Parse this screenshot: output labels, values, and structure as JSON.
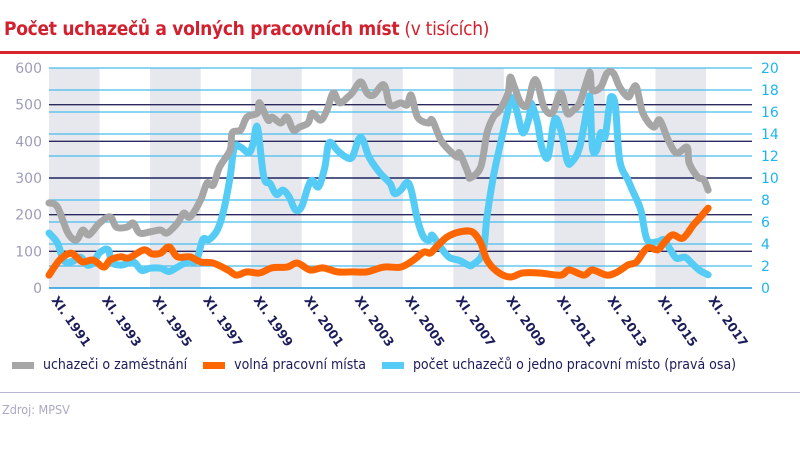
{
  "title": {
    "main": "Počet uchazečů a volných pracovních míst",
    "sub": "(v tisících)"
  },
  "source": "Zdroj: MPSV",
  "colors": {
    "title": "#d2202f",
    "unemployed": "#a6a6a6",
    "vacancies": "#ff6600",
    "ratio": "#55ccf5",
    "grid_major": "#2b2a5e",
    "grid_minor": "#45bdee",
    "band": "#e7e7ee",
    "left_axis": "#9d9db8",
    "right_axis": "#1eb4f0",
    "x_labels": "#1c1c5a"
  },
  "chart_data": {
    "type": "line",
    "title": "Počet uchazečů a volných pracovních míst (v tisících)",
    "x_ticks": [
      "XI. 1991",
      "XI. 1993",
      "XI. 1995",
      "XI. 1997",
      "XI. 1999",
      "XI. 2001",
      "XI. 2003",
      "XI. 2005",
      "XI. 2007",
      "XI. 2009",
      "XI. 2011",
      "XI. 2013",
      "XI. 2015",
      "XI. 2017"
    ],
    "y_left": {
      "range": [
        0,
        600
      ],
      "ticks": [
        "0",
        "100",
        "200",
        "300",
        "400",
        "500",
        "600"
      ]
    },
    "y_right": {
      "range": [
        0,
        20
      ],
      "ticks": [
        "0",
        "2",
        "4",
        "6",
        "8",
        "10",
        "12",
        "14",
        "16",
        "18",
        "20"
      ]
    },
    "grid": true,
    "shaded_bands": true,
    "legend_position": "bottom",
    "series": [
      {
        "name": "uchazeči o zaměstnání",
        "axis": "left",
        "color": "#a6a6a6",
        "points": [
          [
            "1991-11",
            232
          ],
          [
            "1992-03",
            221
          ],
          [
            "1992-08",
            150
          ],
          [
            "1992-12",
            131
          ],
          [
            "1993-03",
            158
          ],
          [
            "1993-06",
            145
          ],
          [
            "1993-11",
            177
          ],
          [
            "1994-04",
            194
          ],
          [
            "1994-07",
            166
          ],
          [
            "1994-12",
            166
          ],
          [
            "1995-03",
            177
          ],
          [
            "1995-06",
            150
          ],
          [
            "1995-11",
            153
          ],
          [
            "1996-04",
            158
          ],
          [
            "1996-07",
            150
          ],
          [
            "1996-12",
            177
          ],
          [
            "1997-03",
            204
          ],
          [
            "1997-06",
            194
          ],
          [
            "1997-11",
            240
          ],
          [
            "1998-02",
            286
          ],
          [
            "1998-05",
            281
          ],
          [
            "1998-08",
            330
          ],
          [
            "1999-01",
            376
          ],
          [
            "1999-02",
            423
          ],
          [
            "1999-06",
            431
          ],
          [
            "1999-09",
            466
          ],
          [
            "2000-02",
            477
          ],
          [
            "2000-03",
            505
          ],
          [
            "2000-07",
            458
          ],
          [
            "2000-09",
            466
          ],
          [
            "2001-01",
            450
          ],
          [
            "2001-04",
            466
          ],
          [
            "2001-07",
            431
          ],
          [
            "2001-10",
            439
          ],
          [
            "2002-02",
            450
          ],
          [
            "2002-04",
            477
          ],
          [
            "2002-08",
            458
          ],
          [
            "2002-11",
            485
          ],
          [
            "2003-02",
            532
          ],
          [
            "2003-05",
            505
          ],
          [
            "2003-09",
            521
          ],
          [
            "2003-11",
            532
          ],
          [
            "2004-03",
            562
          ],
          [
            "2004-06",
            532
          ],
          [
            "2004-09",
            526
          ],
          [
            "2005-02",
            554
          ],
          [
            "2005-05",
            499
          ],
          [
            "2005-10",
            505
          ],
          [
            "2006-01",
            499
          ],
          [
            "2006-03",
            526
          ],
          [
            "2006-06",
            466
          ],
          [
            "2006-11",
            450
          ],
          [
            "2007-01",
            458
          ],
          [
            "2007-05",
            404
          ],
          [
            "2007-09",
            376
          ],
          [
            "2008-01",
            357
          ],
          [
            "2008-02",
            368
          ],
          [
            "2008-06",
            314
          ],
          [
            "2008-07",
            300
          ],
          [
            "2008-12",
            330
          ],
          [
            "2009-03",
            423
          ],
          [
            "2009-06",
            466
          ],
          [
            "2009-09",
            485
          ],
          [
            "2010-01",
            532
          ],
          [
            "2010-02",
            575
          ],
          [
            "2010-04",
            548
          ],
          [
            "2010-07",
            505
          ],
          [
            "2010-10",
            499
          ],
          [
            "2011-01",
            562
          ],
          [
            "2011-03",
            559
          ],
          [
            "2011-06",
            494
          ],
          [
            "2011-10",
            477
          ],
          [
            "2012-02",
            532
          ],
          [
            "2012-05",
            477
          ],
          [
            "2012-08",
            485
          ],
          [
            "2012-11",
            505
          ],
          [
            "2013-03",
            575
          ],
          [
            "2013-04",
            586
          ],
          [
            "2013-05",
            540
          ],
          [
            "2013-09",
            548
          ],
          [
            "2013-12",
            586
          ],
          [
            "2014-03",
            586
          ],
          [
            "2014-06",
            548
          ],
          [
            "2014-10",
            521
          ],
          [
            "2014-12",
            540
          ],
          [
            "2015-02",
            548
          ],
          [
            "2015-05",
            477
          ],
          [
            "2015-10",
            439
          ],
          [
            "2016-01",
            458
          ],
          [
            "2016-05",
            404
          ],
          [
            "2016-09",
            368
          ],
          [
            "2017-02",
            384
          ],
          [
            "2017-03",
            341
          ],
          [
            "2017-07",
            303
          ],
          [
            "2017-10",
            295
          ],
          [
            "2017-12",
            267
          ]
        ]
      },
      {
        "name": "volná pracovní místa",
        "axis": "left",
        "color": "#ff6600",
        "points": [
          [
            "1991-11",
            35
          ],
          [
            "1992-04",
            76
          ],
          [
            "1992-09",
            95
          ],
          [
            "1992-12",
            85
          ],
          [
            "1993-03",
            71
          ],
          [
            "1993-08",
            76
          ],
          [
            "1994-01",
            57
          ],
          [
            "1994-04",
            76
          ],
          [
            "1994-09",
            85
          ],
          [
            "1995-01",
            82
          ],
          [
            "1995-08",
            104
          ],
          [
            "1995-12",
            93
          ],
          [
            "1996-04",
            95
          ],
          [
            "1996-08",
            112
          ],
          [
            "1996-12",
            85
          ],
          [
            "1997-06",
            85
          ],
          [
            "1997-11",
            71
          ],
          [
            "1998-05",
            68
          ],
          [
            "1998-12",
            49
          ],
          [
            "1999-04",
            35
          ],
          [
            "1999-09",
            44
          ],
          [
            "2000-03",
            41
          ],
          [
            "2000-09",
            55
          ],
          [
            "2001-04",
            57
          ],
          [
            "2001-09",
            68
          ],
          [
            "2002-03",
            49
          ],
          [
            "2002-09",
            55
          ],
          [
            "2003-04",
            44
          ],
          [
            "2003-11",
            44
          ],
          [
            "2004-06",
            44
          ],
          [
            "2005-02",
            57
          ],
          [
            "2005-10",
            57
          ],
          [
            "2006-04",
            76
          ],
          [
            "2006-09",
            98
          ],
          [
            "2006-12",
            95
          ],
          [
            "2007-03",
            112
          ],
          [
            "2007-08",
            139
          ],
          [
            "2008-02",
            153
          ],
          [
            "2008-08",
            153
          ],
          [
            "2008-12",
            123
          ],
          [
            "2009-03",
            76
          ],
          [
            "2009-08",
            44
          ],
          [
            "2010-02",
            30
          ],
          [
            "2010-08",
            41
          ],
          [
            "2011-04",
            41
          ],
          [
            "2012-02",
            35
          ],
          [
            "2012-06",
            49
          ],
          [
            "2013-01",
            35
          ],
          [
            "2013-05",
            49
          ],
          [
            "2013-12",
            35
          ],
          [
            "2014-05",
            44
          ],
          [
            "2014-10",
            63
          ],
          [
            "2015-02",
            71
          ],
          [
            "2015-07",
            109
          ],
          [
            "2015-12",
            104
          ],
          [
            "2016-03",
            123
          ],
          [
            "2016-07",
            145
          ],
          [
            "2016-12",
            136
          ],
          [
            "2017-05",
            172
          ],
          [
            "2017-08",
            191
          ],
          [
            "2017-12",
            218
          ]
        ]
      },
      {
        "name": "počet uchazečů o jedno pracovní místo (pravá osa)",
        "axis": "right",
        "color": "#55ccf5",
        "points": [
          [
            "1991-11",
            5.0
          ],
          [
            "1992-03",
            4.1
          ],
          [
            "1992-06",
            2.5
          ],
          [
            "1992-10",
            2.4
          ],
          [
            "1993-02",
            2.8
          ],
          [
            "1993-05",
            2.1
          ],
          [
            "1993-08",
            2.3
          ],
          [
            "1993-11",
            3.2
          ],
          [
            "1994-03",
            3.5
          ],
          [
            "1994-05",
            2.3
          ],
          [
            "1994-10",
            2.1
          ],
          [
            "1995-03",
            2.4
          ],
          [
            "1995-07",
            1.6
          ],
          [
            "1995-11",
            1.8
          ],
          [
            "1996-04",
            1.8
          ],
          [
            "1996-08",
            1.5
          ],
          [
            "1996-12",
            1.9
          ],
          [
            "1997-05",
            2.4
          ],
          [
            "1997-09",
            2.5
          ],
          [
            "1997-12",
            4.4
          ],
          [
            "1998-03",
            4.4
          ],
          [
            "1998-07",
            5.3
          ],
          [
            "1998-10",
            7.1
          ],
          [
            "1999-01",
            10.1
          ],
          [
            "1999-03",
            12.8
          ],
          [
            "1999-06",
            12.8
          ],
          [
            "1999-10",
            12.3
          ],
          [
            "1999-12",
            13.2
          ],
          [
            "2000-02",
            14.6
          ],
          [
            "2000-05",
            10.1
          ],
          [
            "2000-08",
            9.5
          ],
          [
            "2000-11",
            8.5
          ],
          [
            "2001-02",
            8.9
          ],
          [
            "2001-05",
            8.3
          ],
          [
            "2001-08",
            7.1
          ],
          [
            "2001-11",
            7.4
          ],
          [
            "2002-02",
            9.2
          ],
          [
            "2002-04",
            9.8
          ],
          [
            "2002-07",
            9.2
          ],
          [
            "2002-10",
            11.0
          ],
          [
            "2002-12",
            13.2
          ],
          [
            "2003-04",
            12.5
          ],
          [
            "2003-08",
            11.9
          ],
          [
            "2003-11",
            11.9
          ],
          [
            "2004-02",
            13.5
          ],
          [
            "2004-04",
            13.5
          ],
          [
            "2004-07",
            11.9
          ],
          [
            "2004-12",
            10.5
          ],
          [
            "2005-05",
            9.5
          ],
          [
            "2005-07",
            8.6
          ],
          [
            "2005-10",
            8.9
          ],
          [
            "2006-01",
            9.6
          ],
          [
            "2006-03",
            8.9
          ],
          [
            "2006-06",
            6.2
          ],
          [
            "2006-09",
            4.6
          ],
          [
            "2006-12",
            4.4
          ],
          [
            "2007-01",
            4.8
          ],
          [
            "2007-05",
            3.7
          ],
          [
            "2007-09",
            2.8
          ],
          [
            "2008-02",
            2.5
          ],
          [
            "2008-06",
            2.1
          ],
          [
            "2008-08",
            2.1
          ],
          [
            "2009-01",
            3.2
          ],
          [
            "2009-03",
            6.5
          ],
          [
            "2009-06",
            10.1
          ],
          [
            "2009-09",
            12.8
          ],
          [
            "2010-01",
            16.2
          ],
          [
            "2010-02",
            17.4
          ],
          [
            "2010-05",
            16.2
          ],
          [
            "2010-08",
            14.1
          ],
          [
            "2010-11",
            15.5
          ],
          [
            "2010-12",
            16.8
          ],
          [
            "2011-03",
            15.0
          ],
          [
            "2011-05",
            12.8
          ],
          [
            "2011-08",
            11.9
          ],
          [
            "2011-11",
            15.3
          ],
          [
            "2012-02",
            14.4
          ],
          [
            "2012-05",
            11.6
          ],
          [
            "2012-07",
            11.4
          ],
          [
            "2012-11",
            12.8
          ],
          [
            "2013-03",
            16.8
          ],
          [
            "2013-04",
            17.1
          ],
          [
            "2013-05",
            12.8
          ],
          [
            "2013-07",
            12.5
          ],
          [
            "2013-09",
            14.1
          ],
          [
            "2013-11",
            13.7
          ],
          [
            "2014-01",
            16.5
          ],
          [
            "2014-02",
            17.4
          ],
          [
            "2014-04",
            16.5
          ],
          [
            "2014-06",
            11.6
          ],
          [
            "2014-10",
            9.8
          ],
          [
            "2014-12",
            8.9
          ],
          [
            "2015-04",
            7.1
          ],
          [
            "2015-07",
            4.4
          ],
          [
            "2015-12",
            4.2
          ],
          [
            "2016-03",
            4.4
          ],
          [
            "2016-06",
            3.5
          ],
          [
            "2016-09",
            2.7
          ],
          [
            "2017-01",
            2.8
          ],
          [
            "2017-04",
            2.3
          ],
          [
            "2017-08",
            1.6
          ],
          [
            "2017-12",
            1.2
          ]
        ]
      }
    ]
  }
}
